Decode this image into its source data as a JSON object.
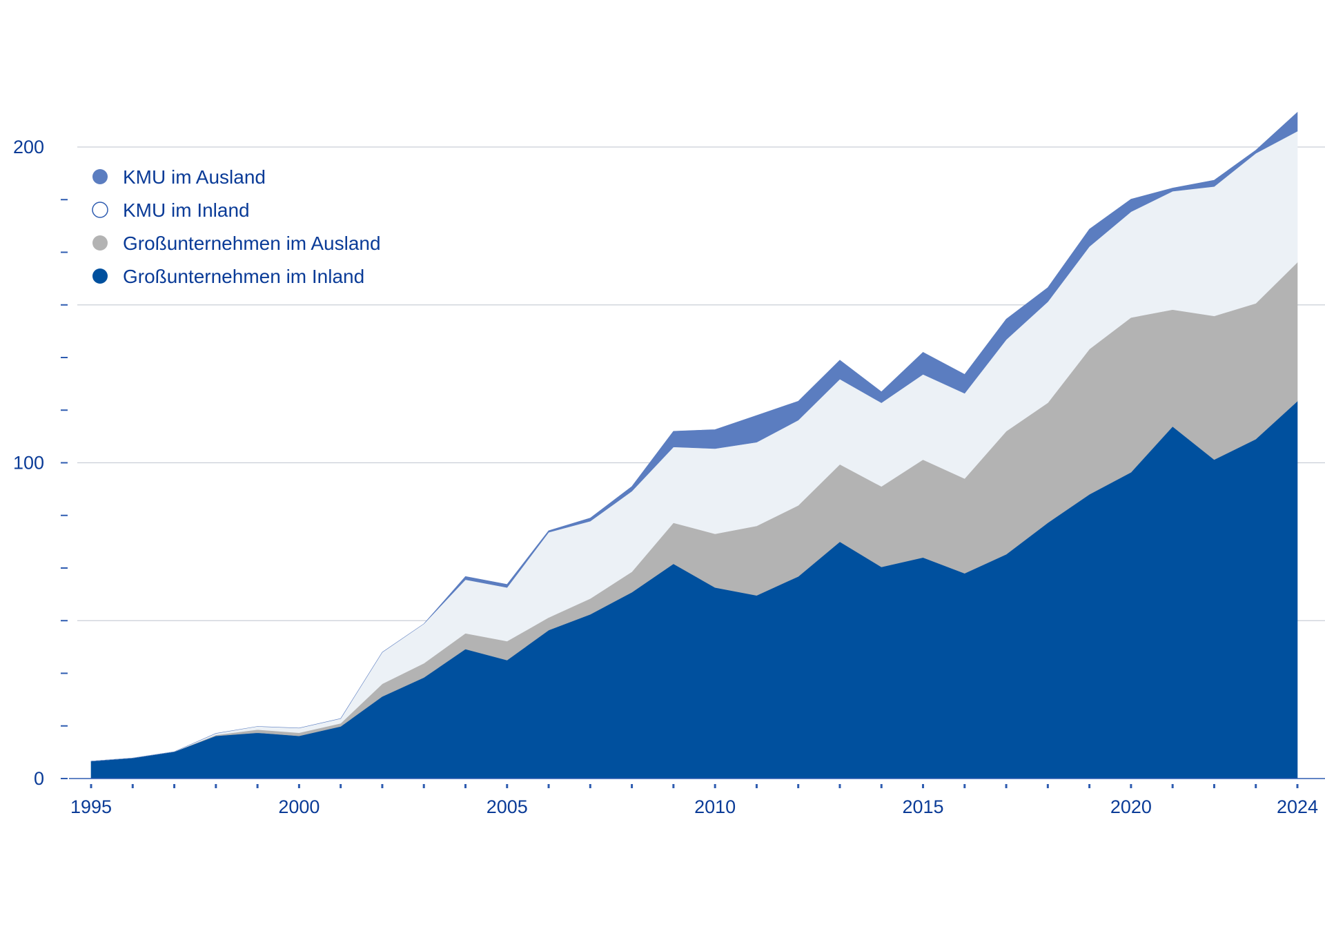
{
  "colors": {
    "text": "#0a3b97",
    "grid": "#c9ced6",
    "axis": "#2d5bb0",
    "gross_inland": "#00509e",
    "gross_ausland": "#b3b3b3",
    "kmu_inland": "#ecf1f6",
    "kmu_ausland": "#5b7dc0"
  },
  "chart_data": {
    "type": "area",
    "stacked": true,
    "title": "",
    "xlabel": "",
    "ylabel": "",
    "x": [
      1995,
      1996,
      1997,
      1998,
      1999,
      2000,
      2001,
      2002,
      2003,
      2004,
      2005,
      2006,
      2007,
      2008,
      2009,
      2010,
      2011,
      2012,
      2013,
      2014,
      2015,
      2016,
      2017,
      2018,
      2019,
      2020,
      2021,
      2022,
      2023,
      2024
    ],
    "xlim": [
      1995,
      2024
    ],
    "ylim": [
      0,
      200
    ],
    "x_tick_labels": [
      "1995",
      "2000",
      "2005",
      "2010",
      "2015",
      "2020",
      "2024"
    ],
    "y_tick_labels": [
      "0",
      "100",
      "200"
    ],
    "grid": true,
    "legend_position": "top-left",
    "series": [
      {
        "name": "Großunternehmen im Inland",
        "color": "#00509e",
        "values": [
          5.5,
          6.5,
          8.5,
          13.5,
          14.5,
          13.5,
          16.5,
          26,
          32,
          41,
          37.5,
          47,
          52,
          59,
          68,
          60.5,
          58,
          64,
          75,
          67,
          70,
          65,
          71,
          81,
          90,
          97,
          111.5,
          101,
          107.5,
          119.5
        ]
      },
      {
        "name": "Großunternehmen im Ausland",
        "color": "#b3b3b3",
        "values": [
          0,
          0,
          0,
          0.3,
          1,
          1,
          1,
          4,
          4.5,
          5,
          6,
          4,
          5,
          6.5,
          13,
          17,
          22,
          22.5,
          24.5,
          25.5,
          31,
          30,
          39,
          38,
          46,
          49,
          37,
          45.5,
          43,
          44
        ]
      },
      {
        "name": "KMU im Inland",
        "color": "#ecf1f6",
        "values": [
          0,
          0,
          0,
          0.5,
          1,
          1.5,
          1.5,
          10,
          12.5,
          17,
          17,
          27,
          24.5,
          25.5,
          24,
          27,
          26.5,
          27,
          27,
          26.5,
          27,
          27,
          29,
          32,
          32.5,
          33.5,
          37.5,
          41,
          47.5,
          41.5
        ]
      },
      {
        "name": "KMU im Ausland",
        "color": "#5b7dc0",
        "values": [
          0,
          0,
          0,
          0,
          0,
          0,
          0,
          0,
          0,
          1,
          1,
          0.5,
          1,
          1.5,
          5,
          6,
          8.5,
          6,
          6,
          3.5,
          7,
          6,
          6.5,
          4.5,
          5.5,
          4,
          1,
          2,
          1,
          6
        ]
      }
    ]
  }
}
